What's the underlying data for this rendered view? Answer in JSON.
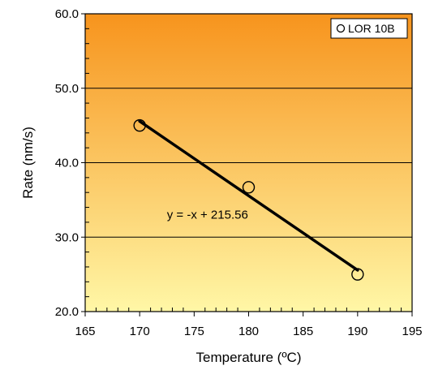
{
  "chart_data": {
    "type": "scatter",
    "title": "",
    "xlabel": "Temperature (ºC)",
    "ylabel": "Rate (nm/s)",
    "xlim": [
      165,
      195
    ],
    "ylim": [
      20,
      60
    ],
    "x_ticks": [
      165,
      170,
      175,
      180,
      185,
      190,
      195
    ],
    "x_tick_labels": [
      "165",
      "170",
      "175",
      "180",
      "185",
      "190",
      "195"
    ],
    "y_ticks": [
      20,
      30,
      40,
      50,
      60
    ],
    "y_tick_labels": [
      "20.0",
      "30.0",
      "40.0",
      "50.0",
      "60.0"
    ],
    "grid": "horizontal",
    "legend_position": "top-right",
    "series": [
      {
        "name": "LOR 10B",
        "marker": "open-circle",
        "x": [
          170,
          180,
          190
        ],
        "y": [
          45.0,
          36.7,
          25.0
        ]
      }
    ],
    "trendline": {
      "slope": -1,
      "intercept": 215.56,
      "x_range": [
        170,
        190
      ],
      "equation_label": "y = -x + 215.56",
      "label_anchor": [
        172.5,
        32.5
      ]
    },
    "colors": {
      "gradient_top": "#f7941d",
      "gradient_bottom": "#fff7a6",
      "line": "#000000",
      "grid": "#000000"
    }
  }
}
